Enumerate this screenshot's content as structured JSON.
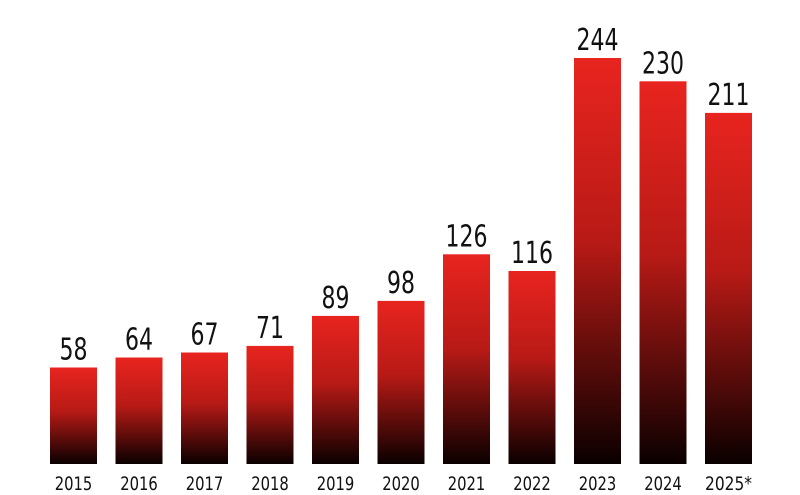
{
  "chart_data": {
    "type": "bar",
    "categories": [
      "2015",
      "2016",
      "2017",
      "2018",
      "2019",
      "2020",
      "2021",
      "2022",
      "2023",
      "2024",
      "2025*"
    ],
    "values": [
      58,
      64,
      67,
      71,
      89,
      98,
      126,
      116,
      244,
      230,
      211
    ],
    "title": "",
    "xlabel": "",
    "ylabel": "",
    "ylim": [
      0,
      250
    ],
    "grid": false,
    "data_labels": true,
    "colors": {
      "bar_top": "#e8241f",
      "bar_bottom": "#0a0000",
      "text": "#111111"
    }
  }
}
